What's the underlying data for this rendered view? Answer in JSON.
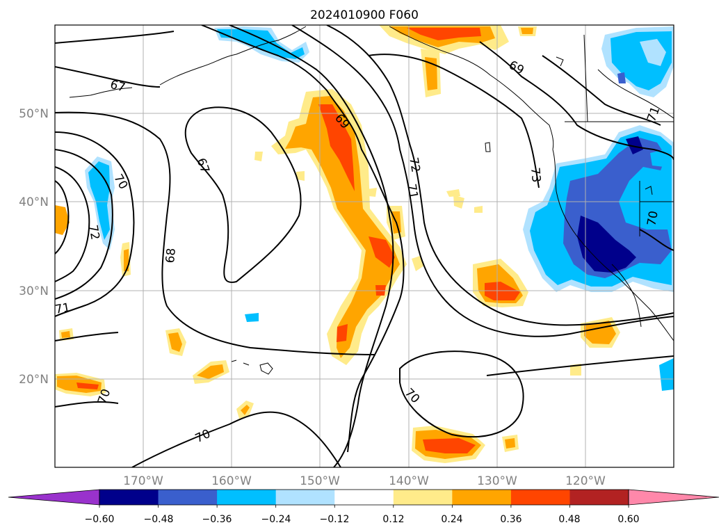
{
  "title": "2024010900 F060",
  "map": {
    "lat_labels": [
      "50°N",
      "40°N",
      "30°N",
      "20°N"
    ],
    "lon_labels": [
      "170°W",
      "160°W",
      "150°W",
      "140°W",
      "130°W",
      "120°W"
    ],
    "contour_labels": [
      "67",
      "67",
      "68",
      "69",
      "69",
      "70",
      "70",
      "70",
      "70",
      "70",
      "71",
      "71",
      "71",
      "72",
      "72",
      "73"
    ]
  },
  "colorbar": {
    "ticks": [
      "−0.60",
      "−0.48",
      "−0.36",
      "−0.24",
      "−0.12",
      "0.12",
      "0.24",
      "0.36",
      "0.48",
      "0.60"
    ],
    "colors": [
      "#9932cc",
      "#00008b",
      "#3a5fcd",
      "#00bfff",
      "#b0e2ff",
      "#ffffff",
      "#ffeb8a",
      "#ffa500",
      "#ff4500",
      "#b22222",
      "#ff88aa"
    ]
  },
  "colors": {
    "light_yellow": "#ffeb8a",
    "orange": "#ffa500",
    "red_orange": "#ff4500",
    "light_blue": "#b0e2ff",
    "deep_sky_blue": "#00bfff",
    "royal_blue": "#3a5fcd",
    "navy": "#00008b"
  }
}
